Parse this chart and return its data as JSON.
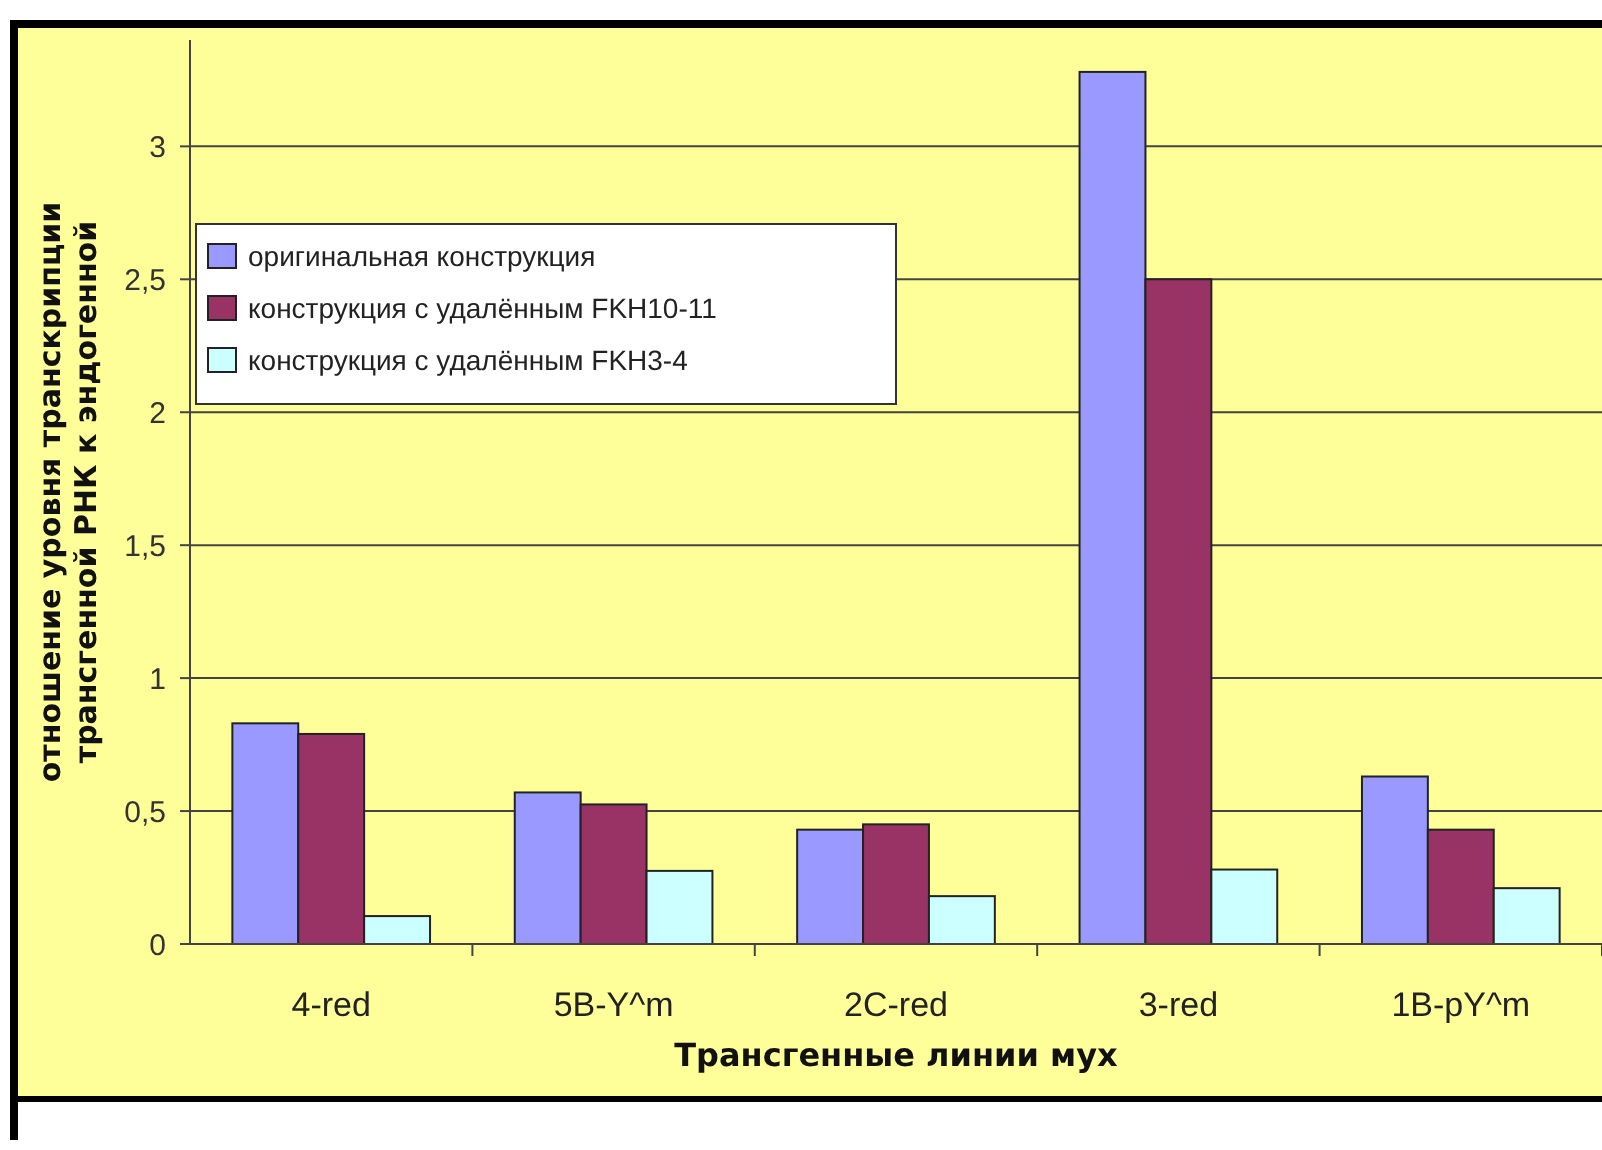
{
  "chart_data": {
    "type": "bar",
    "xlabel": "Трансгенные линии мух",
    "ylabel": "отношение уровня транскрипции\nтрансгенной РНК к эндогенной",
    "categories": [
      "4-red",
      "5B-Y^m",
      "2C-red",
      "3-red",
      "1B-pY^m"
    ],
    "series": [
      {
        "name": "оригинальная конструкция",
        "color": "#9999ff",
        "values": [
          0.83,
          0.57,
          0.43,
          3.28,
          0.63
        ]
      },
      {
        "name": "конструкция с удалённым FKH10-11",
        "color": "#993366",
        "values": [
          0.79,
          0.525,
          0.45,
          2.5,
          0.43
        ]
      },
      {
        "name": "конструкция с удалённым FKH3-4",
        "color": "#ccffff",
        "values": [
          0.105,
          0.275,
          0.18,
          0.28,
          0.21
        ]
      }
    ],
    "ylim": [
      0,
      3.4
    ],
    "yticks": [
      0,
      {
        "value": 0.5,
        "label": "0,5"
      },
      1,
      {
        "value": 1.5,
        "label": "1,5"
      },
      2,
      {
        "value": 2.5,
        "label": "2,5"
      },
      3
    ],
    "grid": "y",
    "legend": "top left"
  }
}
